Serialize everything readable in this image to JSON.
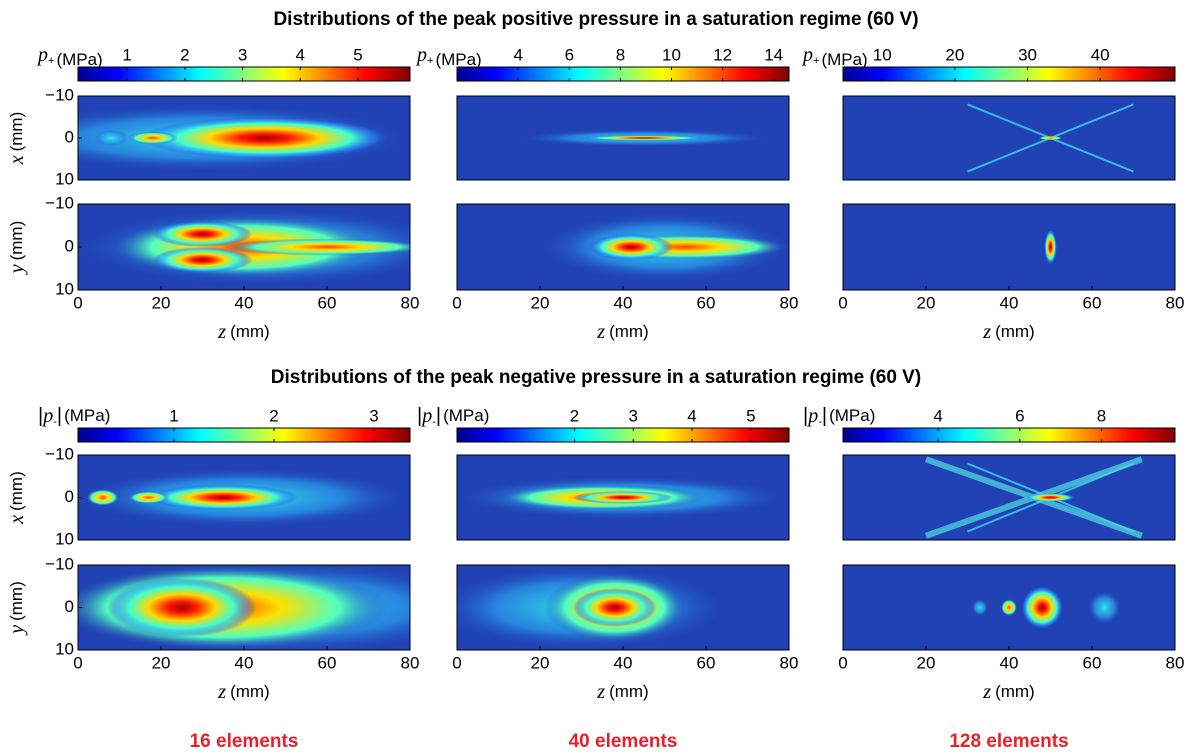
{
  "titles": [
    "Distributions of the peak positive pressure in a saturation regime (60 V)",
    "Distributions of the peak negative pressure in a saturation regime (60 V)"
  ],
  "captions": [
    "16 elements",
    "40 elements",
    "128 elements"
  ],
  "chart_data": [
    {
      "type": "heatmap",
      "colorbar": {
        "symbol": "p",
        "subscript": "+",
        "unit": "(MPa)",
        "clim": [
          0.15,
          5.9
        ],
        "ticks": [
          1,
          2,
          3,
          4,
          5
        ]
      },
      "panels": [
        {
          "ylabel": "x",
          "yunit": "(mm)",
          "xlim": [
            0,
            80
          ],
          "ylim": [
            -10,
            10
          ],
          "yreverse": true,
          "yticks": [
            {
              "value": -10,
              "label": "−10"
            },
            0,
            10
          ]
        },
        {
          "ylabel": "y",
          "yunit": "(mm)",
          "xlabel": "z",
          "xunit": "(mm)",
          "xlim": [
            0,
            80
          ],
          "xticks": [
            0,
            20,
            40,
            60,
            80
          ],
          "ylim": [
            -10,
            10
          ],
          "yreverse": true,
          "yticks": [
            {
              "value": -10,
              "label": "−10"
            },
            0,
            10
          ]
        }
      ]
    },
    {
      "type": "heatmap",
      "colorbar": {
        "symbol": "p",
        "subscript": "+",
        "unit": "(MPa)",
        "clim": [
          1.6,
          14.6
        ],
        "ticks": [
          4,
          6,
          8,
          10,
          12,
          14
        ]
      },
      "panels": [
        {
          "xlim": [
            0,
            80
          ],
          "ylim": [
            -10,
            10
          ],
          "yreverse": true
        },
        {
          "xlabel": "z",
          "xunit": "(mm)",
          "xlim": [
            0,
            80
          ],
          "xticks": [
            0,
            20,
            40,
            60,
            80
          ],
          "ylim": [
            -10,
            10
          ],
          "yreverse": true
        }
      ]
    },
    {
      "type": "heatmap",
      "colorbar": {
        "symbol": "p",
        "subscript": "+",
        "unit": "(MPa)",
        "clim": [
          4.6,
          50.3
        ],
        "ticks": [
          10,
          20,
          30,
          40
        ]
      },
      "panels": [
        {
          "xlim": [
            0,
            80
          ],
          "ylim": [
            -10,
            10
          ],
          "yreverse": true
        },
        {
          "xlabel": "z",
          "xunit": "(mm)",
          "xlim": [
            0,
            80
          ],
          "xticks": [
            0,
            20,
            40,
            60,
            80
          ],
          "ylim": [
            -10,
            10
          ],
          "yreverse": true
        }
      ]
    },
    {
      "type": "heatmap",
      "colorbar": {
        "prefix": "|",
        "symbol": "p",
        "subscript": "-",
        "suffix": "|",
        "unit": "(MPa)",
        "clim": [
          0.04,
          3.36
        ],
        "ticks": [
          1,
          2,
          3
        ]
      },
      "panels": [
        {
          "ylabel": "x",
          "yunit": "(mm)",
          "xlim": [
            0,
            80
          ],
          "ylim": [
            -10,
            10
          ],
          "yreverse": true,
          "yticks": [
            {
              "value": -10,
              "label": "−10"
            },
            0,
            10
          ]
        },
        {
          "ylabel": "y",
          "yunit": "(mm)",
          "xlabel": "z",
          "xunit": "(mm)",
          "xlim": [
            0,
            80
          ],
          "xticks": [
            0,
            20,
            40,
            60,
            80
          ],
          "ylim": [
            -10,
            10
          ],
          "yreverse": true,
          "yticks": [
            {
              "value": -10,
              "label": "−10"
            },
            0,
            10
          ]
        }
      ]
    },
    {
      "type": "heatmap",
      "colorbar": {
        "prefix": "|",
        "symbol": "p",
        "subscript": "-",
        "suffix": "|",
        "unit": "(MPa)",
        "clim": [
          0,
          5.65
        ],
        "ticks": [
          2,
          3,
          4,
          5
        ]
      },
      "panels": [
        {
          "xlim": [
            0,
            80
          ],
          "ylim": [
            -10,
            10
          ],
          "yreverse": true
        },
        {
          "xlabel": "z",
          "xunit": "(mm)",
          "xlim": [
            0,
            80
          ],
          "xticks": [
            0,
            20,
            40,
            60,
            80
          ],
          "ylim": [
            -10,
            10
          ],
          "yreverse": true
        }
      ]
    },
    {
      "type": "heatmap",
      "colorbar": {
        "prefix": "|",
        "symbol": "p",
        "subscript": "-",
        "suffix": "|",
        "unit": "(MPa)",
        "clim": [
          1.67,
          9.8
        ],
        "ticks": [
          4,
          6,
          8
        ]
      },
      "panels": [
        {
          "xlim": [
            0,
            80
          ],
          "ylim": [
            -10,
            10
          ],
          "yreverse": true
        },
        {
          "xlabel": "z",
          "xunit": "(mm)",
          "xlim": [
            0,
            80
          ],
          "xticks": [
            0,
            20,
            40,
            60,
            80
          ],
          "ylim": [
            -10,
            10
          ],
          "yreverse": true
        }
      ]
    }
  ]
}
